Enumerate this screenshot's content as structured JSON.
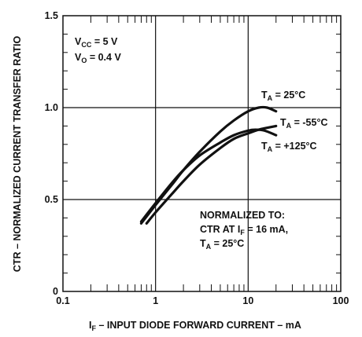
{
  "chart_data": {
    "type": "line",
    "xlabel": "I",
    "xlabel_sub": "F",
    "xlabel_rest": " – INPUT DIODE FORWARD CURRENT – mA",
    "ylabel": "CTR – NORMALIZED CURRENT TRANSFER RATIO",
    "x_scale": "log",
    "xlim": [
      0.1,
      100
    ],
    "ylim": [
      0,
      1.5
    ],
    "x_ticks": [
      {
        "value": 0.1,
        "label": "0.1"
      },
      {
        "value": 1,
        "label": "1"
      },
      {
        "value": 10,
        "label": "10"
      },
      {
        "value": 100,
        "label": "100"
      }
    ],
    "y_ticks": [
      {
        "value": 0,
        "label": "0"
      },
      {
        "value": 0.5,
        "label": "0.5"
      },
      {
        "value": 1.0,
        "label": "1.0"
      },
      {
        "value": 1.5,
        "label": "1.5"
      }
    ],
    "grid": true,
    "conditions": [
      {
        "main": "V",
        "sub": "CC",
        "rest": " = 5 V"
      },
      {
        "main": "V",
        "sub": "O",
        "rest": " = 0.4 V"
      }
    ],
    "note": {
      "line1": "NORMALIZED TO:",
      "line2_main": "CTR AT I",
      "line2_sub": "F",
      "line2_rest": " = 16 mA,",
      "line3_main": "T",
      "line3_sub": "A",
      "line3_rest": " = 25°C"
    },
    "series": [
      {
        "label_main": "T",
        "label_sub": "A",
        "label_rest": " = 25°C",
        "x": [
          0.7,
          1,
          1.5,
          2,
          3,
          5,
          7,
          10,
          13,
          16,
          20
        ],
        "y": [
          0.37,
          0.47,
          0.58,
          0.66,
          0.76,
          0.87,
          0.93,
          0.98,
          1.0,
          1.0,
          0.98
        ]
      },
      {
        "label_main": "T",
        "label_sub": "A",
        "label_rest": " = -55°C",
        "x": [
          0.8,
          1,
          1.5,
          2,
          3,
          5,
          7,
          10,
          13,
          16,
          20
        ],
        "y": [
          0.37,
          0.43,
          0.53,
          0.6,
          0.69,
          0.78,
          0.83,
          0.86,
          0.88,
          0.89,
          0.9
        ]
      },
      {
        "label_main": "T",
        "label_sub": "A",
        "label_rest": " = +125°C",
        "x": [
          0.7,
          1,
          1.5,
          2,
          3,
          5,
          7,
          10,
          12,
          15,
          20
        ],
        "y": [
          0.38,
          0.48,
          0.59,
          0.66,
          0.74,
          0.81,
          0.85,
          0.875,
          0.88,
          0.875,
          0.85
        ]
      }
    ]
  }
}
